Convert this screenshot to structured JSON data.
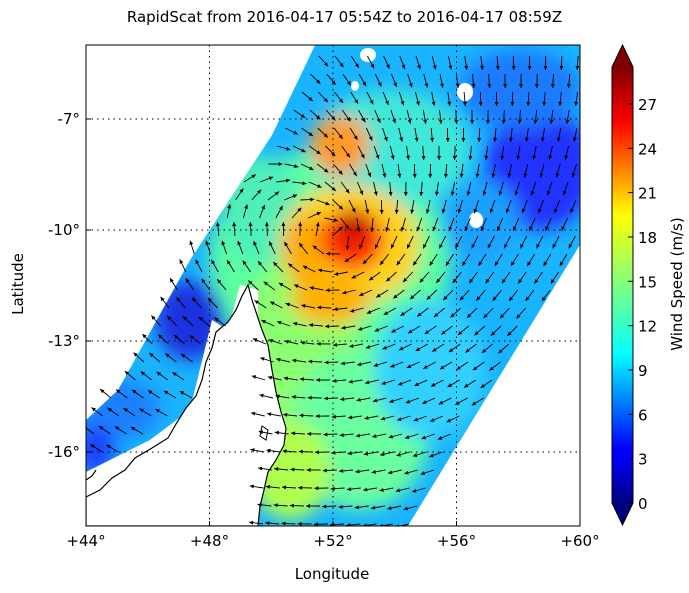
{
  "title": "RapidScat  from 2016-04-17 05:54Z to 2016-04-17 08:59Z",
  "axes": {
    "xlabel": "Longitude",
    "ylabel": "Latitude",
    "xticks": [
      "+44°",
      "+48°",
      "+52°",
      "+56°",
      "+60°"
    ],
    "yticks": [
      "-7°",
      "-10°",
      "-13°",
      "-16°"
    ],
    "x_values": [
      44,
      48,
      52,
      56,
      60
    ],
    "y_values": [
      -7,
      -10,
      -13,
      -16
    ],
    "xlim": [
      44,
      60
    ],
    "ylim": [
      -18,
      -5
    ],
    "grid": "dotted"
  },
  "colorbar": {
    "label": "Wind Speed (m/s)",
    "ticks": [
      "0",
      "3",
      "6",
      "9",
      "12",
      "15",
      "18",
      "21",
      "24",
      "27"
    ],
    "range": [
      0,
      29.5
    ],
    "colormap": "jet",
    "extend": "both"
  },
  "wind_field": {
    "cyclone_center": [
      52.3,
      -10.3
    ],
    "max_wind_ms": 28,
    "swath_color_note": "jet colormap of wind speed"
  },
  "colors": {
    "low": "#00007f",
    "mid": "#7fff7f",
    "high": "#7f0000",
    "coastline": "#000000"
  }
}
